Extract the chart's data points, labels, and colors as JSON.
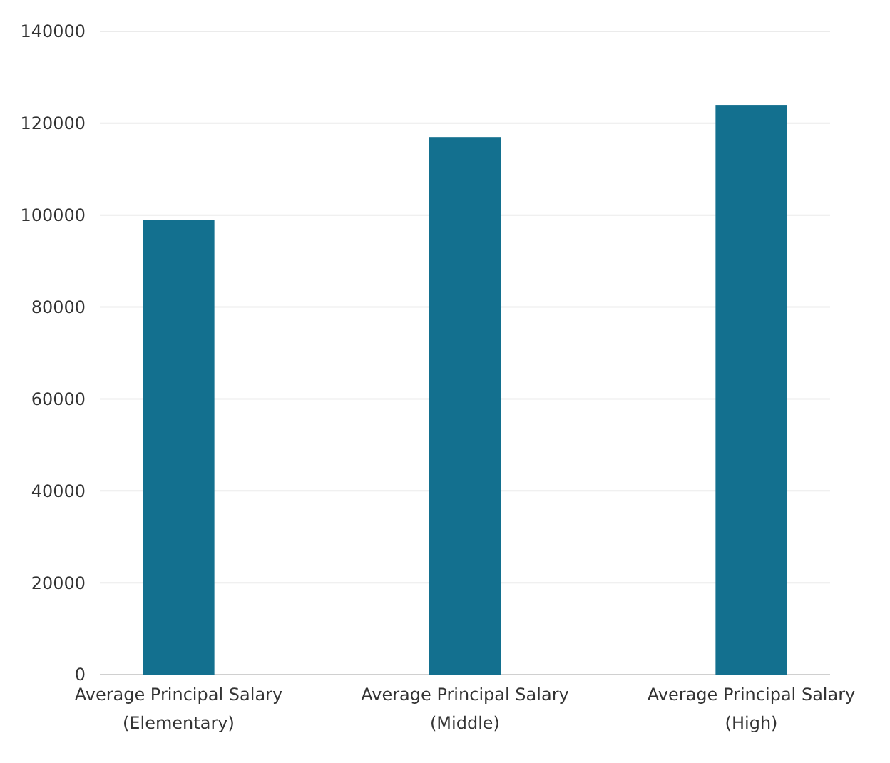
{
  "chart_data": {
    "type": "bar",
    "categories": [
      "Average Principal Salary\n(Elementary)",
      "Average Principal Salary\n(Middle)",
      "Average Principal Salary\n(High)"
    ],
    "values": [
      99000,
      117000,
      124000
    ],
    "color": "#13708f",
    "ylim": [
      0,
      140000
    ],
    "yticks": [
      0,
      20000,
      40000,
      60000,
      80000,
      100000,
      120000,
      140000
    ],
    "grid": "y"
  }
}
